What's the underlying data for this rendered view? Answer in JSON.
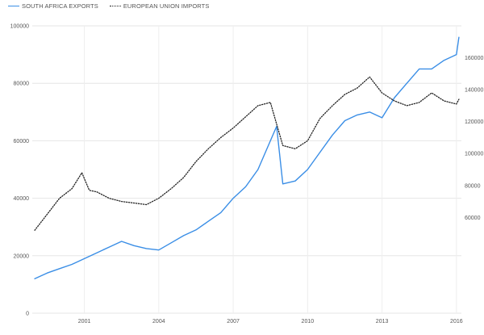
{
  "chart_data": {
    "type": "line",
    "legend_position": "top-left",
    "grid": true,
    "x_ticks": [
      "2001",
      "2004",
      "2007",
      "2010",
      "2013",
      "2016"
    ],
    "x_tick_years": [
      2001,
      2004,
      2007,
      2010,
      2013,
      2016
    ],
    "xlim": [
      1998.9,
      2016.2
    ],
    "left_axis": {
      "ticks": [
        "0",
        "20000",
        "40000",
        "60000",
        "80000",
        "100000"
      ],
      "ylim": [
        0,
        100000
      ]
    },
    "right_axis": {
      "ticks": [
        "60000",
        "80000",
        "100000",
        "120000",
        "140000",
        "160000"
      ],
      "ylim": [
        0,
        180000
      ]
    },
    "series": [
      {
        "name": "SOUTH AFRICA EXPORTS",
        "axis": "left",
        "color": "#3a8ee6",
        "style": "solid",
        "points": [
          [
            1999.0,
            12000
          ],
          [
            1999.5,
            14000
          ],
          [
            2000.0,
            15500
          ],
          [
            2000.5,
            17000
          ],
          [
            2001.0,
            19000
          ],
          [
            2001.5,
            21000
          ],
          [
            2002.0,
            23000
          ],
          [
            2002.5,
            25000
          ],
          [
            2003.0,
            23500
          ],
          [
            2003.5,
            22500
          ],
          [
            2004.0,
            22000
          ],
          [
            2004.5,
            24500
          ],
          [
            2005.0,
            27000
          ],
          [
            2005.5,
            29000
          ],
          [
            2006.0,
            32000
          ],
          [
            2006.5,
            35000
          ],
          [
            2007.0,
            40000
          ],
          [
            2007.5,
            44000
          ],
          [
            2008.0,
            50000
          ],
          [
            2008.5,
            60000
          ],
          [
            2008.75,
            65000
          ],
          [
            2009.0,
            45000
          ],
          [
            2009.5,
            46000
          ],
          [
            2010.0,
            50000
          ],
          [
            2010.5,
            56000
          ],
          [
            2011.0,
            62000
          ],
          [
            2011.5,
            67000
          ],
          [
            2012.0,
            69000
          ],
          [
            2012.5,
            70000
          ],
          [
            2013.0,
            68000
          ],
          [
            2013.5,
            75000
          ],
          [
            2014.0,
            80000
          ],
          [
            2014.5,
            85000
          ],
          [
            2015.0,
            85000
          ],
          [
            2015.5,
            88000
          ],
          [
            2016.0,
            90000
          ],
          [
            2016.1,
            96000
          ]
        ]
      },
      {
        "name": "EUROPEAN UNION IMPORTS",
        "axis": "right",
        "color": "#222222",
        "style": "dotted",
        "points": [
          [
            1999.0,
            52000
          ],
          [
            1999.5,
            62000
          ],
          [
            2000.0,
            72000
          ],
          [
            2000.5,
            78000
          ],
          [
            2000.9,
            88000
          ],
          [
            2001.2,
            77000
          ],
          [
            2001.5,
            76000
          ],
          [
            2002.0,
            72000
          ],
          [
            2002.5,
            70000
          ],
          [
            2003.0,
            69000
          ],
          [
            2003.5,
            68000
          ],
          [
            2004.0,
            72000
          ],
          [
            2004.5,
            78000
          ],
          [
            2005.0,
            85000
          ],
          [
            2005.5,
            95000
          ],
          [
            2006.0,
            103000
          ],
          [
            2006.5,
            110000
          ],
          [
            2007.0,
            116000
          ],
          [
            2007.5,
            123000
          ],
          [
            2008.0,
            130000
          ],
          [
            2008.5,
            132000
          ],
          [
            2009.0,
            105000
          ],
          [
            2009.5,
            103000
          ],
          [
            2010.0,
            108000
          ],
          [
            2010.5,
            122000
          ],
          [
            2011.0,
            130000
          ],
          [
            2011.5,
            137000
          ],
          [
            2012.0,
            141000
          ],
          [
            2012.5,
            148000
          ],
          [
            2013.0,
            138000
          ],
          [
            2013.5,
            133000
          ],
          [
            2014.0,
            130000
          ],
          [
            2014.5,
            132000
          ],
          [
            2015.0,
            138000
          ],
          [
            2015.5,
            133000
          ],
          [
            2016.0,
            131000
          ],
          [
            2016.1,
            134000
          ]
        ]
      }
    ]
  }
}
